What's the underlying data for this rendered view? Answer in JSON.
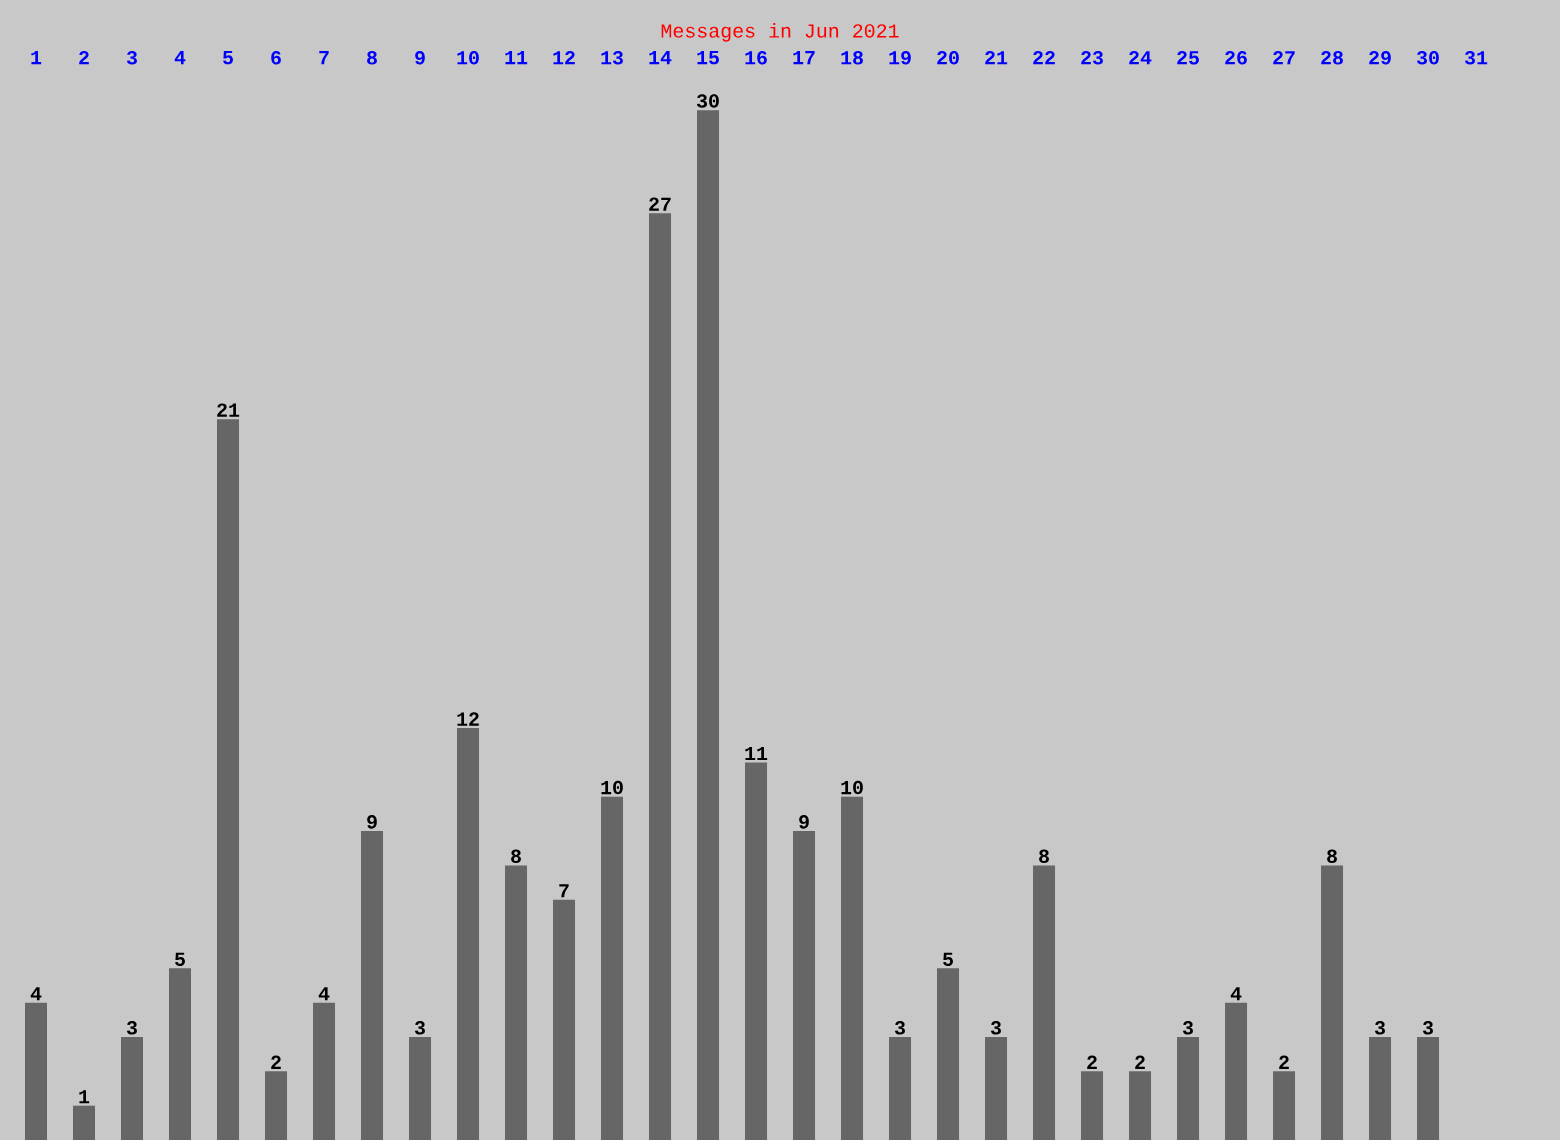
{
  "chart_data": {
    "type": "bar",
    "title": "Messages in Jun 2021",
    "categories": [
      "1",
      "2",
      "3",
      "4",
      "5",
      "6",
      "7",
      "8",
      "9",
      "10",
      "11",
      "12",
      "13",
      "14",
      "15",
      "16",
      "17",
      "18",
      "19",
      "20",
      "21",
      "22",
      "23",
      "24",
      "25",
      "26",
      "27",
      "28",
      "29",
      "30",
      "31"
    ],
    "values": [
      4,
      1,
      3,
      5,
      21,
      2,
      4,
      9,
      3,
      12,
      8,
      7,
      10,
      27,
      30,
      11,
      9,
      10,
      3,
      5,
      3,
      8,
      2,
      2,
      3,
      4,
      2,
      8,
      3,
      3,
      null
    ],
    "color": "#666666",
    "data_labels": true
  }
}
